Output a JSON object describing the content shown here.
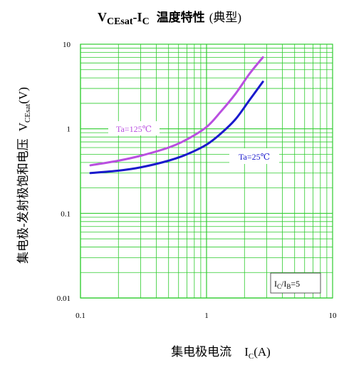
{
  "chart_data": {
    "type": "line",
    "title": {
      "v": "V",
      "v_sub": "CEsat",
      "dash": "-",
      "i": "I",
      "i_sub": "C",
      "cn": "温度特性",
      "paren": "(典型)"
    },
    "xlabel": {
      "cn": "集电极电流",
      "i": "I",
      "i_sub": "C",
      "unit": "(A)"
    },
    "ylabel": {
      "cn": "集电极-发射极饱和电压",
      "v": "V",
      "v_sub": "CEsat",
      "unit": "(V)"
    },
    "x_scale": "log",
    "y_scale": "log",
    "xlim": [
      0.1,
      10
    ],
    "ylim": [
      0.01,
      10
    ],
    "x_ticks": [
      {
        "value": 0.1,
        "label": "0.1"
      },
      {
        "value": 1,
        "label": "1"
      },
      {
        "value": 10,
        "label": "10"
      }
    ],
    "y_ticks": [
      {
        "value": 0.01,
        "label": "0.01"
      },
      {
        "value": 0.1,
        "label": "0.1"
      },
      {
        "value": 1,
        "label": "1"
      },
      {
        "value": 10,
        "label": "10"
      }
    ],
    "grid": true,
    "grid_color": "#2ecc2e",
    "series": [
      {
        "name": "Ta=125℃",
        "color": "#b94fe0",
        "x": [
          0.12,
          0.2,
          0.3,
          0.5,
          0.7,
          1.0,
          1.3,
          1.7,
          2.2,
          2.8
        ],
        "y": [
          0.37,
          0.42,
          0.48,
          0.6,
          0.75,
          1.05,
          1.6,
          2.6,
          4.5,
          7.0
        ]
      },
      {
        "name": "Ta=25℃",
        "color": "#1a1acc",
        "x": [
          0.12,
          0.2,
          0.3,
          0.5,
          0.7,
          1.0,
          1.3,
          1.7,
          2.2,
          2.8
        ],
        "y": [
          0.3,
          0.32,
          0.35,
          0.42,
          0.5,
          0.65,
          0.88,
          1.3,
          2.2,
          3.6
        ]
      }
    ],
    "condition": {
      "i1": "I",
      "i1_sub": "C",
      "slash": "/",
      "i2": "I",
      "i2_sub": "B",
      "value": "=5"
    }
  }
}
